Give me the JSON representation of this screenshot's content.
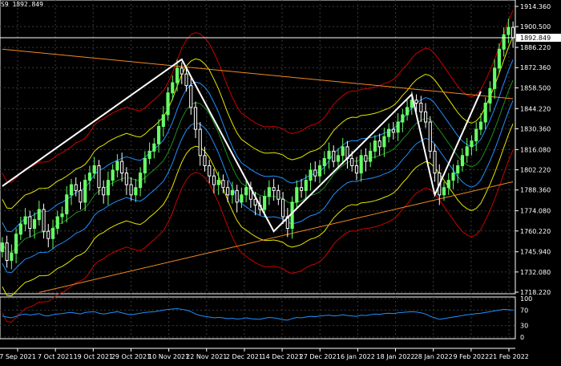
{
  "header": {
    "symbol_price": "S9 1892.849"
  },
  "current_price_label": "1892.849",
  "colors": {
    "background": "#000000",
    "grid": "#3a3a3a",
    "bull_candle": "#66ff66",
    "bear_candle": "#ffffff",
    "zigzag": "#ffffff",
    "trendline": "#f08a24",
    "envelope_outer": "#cc0000",
    "envelope_inner": "#e6e600",
    "bollinger": "#1e90ff",
    "ma_green": "#1c8f1c",
    "oscillator": "#1e90ff"
  },
  "chart_data": [
    {
      "type": "candlestick",
      "title": "",
      "price_axis_ticks": [
        "1914.360",
        "1900.500",
        "1886.220",
        "1872.360",
        "1858.500",
        "1844.220",
        "1830.360",
        "1816.080",
        "1802.220",
        "1788.360",
        "1774.080",
        "1760.220",
        "1745.940",
        "1732.080",
        "1718.220"
      ],
      "ylim": [
        1718.22,
        1914.36
      ],
      "time_axis_ticks": [
        "7 Sep 2021",
        "7 Oct 2021",
        "19 Oct 2021",
        "29 Oct 2021",
        "10 Nov 2021",
        "22 Nov 2021",
        "2 Dec 2021",
        "14 Dec 2021",
        "27 Dec 2021",
        "6 Jan 2022",
        "18 Jan 2022",
        "28 Jan 2022",
        "9 Feb 2022",
        "21 Feb 2022"
      ],
      "grid": true,
      "last_price": 1892.849,
      "close_series": [
        1752,
        1740,
        1745,
        1758,
        1765,
        1770,
        1762,
        1768,
        1775,
        1760,
        1755,
        1762,
        1770,
        1772,
        1785,
        1792,
        1788,
        1780,
        1795,
        1800,
        1805,
        1790,
        1785,
        1795,
        1802,
        1808,
        1800,
        1792,
        1785,
        1790,
        1800,
        1810,
        1815,
        1820,
        1832,
        1840,
        1855,
        1862,
        1872,
        1868,
        1860,
        1845,
        1830,
        1812,
        1805,
        1798,
        1792,
        1795,
        1790,
        1785,
        1788,
        1780,
        1785,
        1790,
        1782,
        1778,
        1775,
        1784,
        1790,
        1788,
        1782,
        1770,
        1762,
        1780,
        1790,
        1788,
        1795,
        1802,
        1798,
        1805,
        1810,
        1815,
        1808,
        1812,
        1818,
        1810,
        1805,
        1800,
        1812,
        1808,
        1815,
        1822,
        1818,
        1825,
        1830,
        1828,
        1835,
        1840,
        1845,
        1850,
        1848,
        1842,
        1835,
        1815,
        1800,
        1785,
        1790,
        1795,
        1800,
        1805,
        1812,
        1818,
        1822,
        1830,
        1835,
        1848,
        1858,
        1872,
        1885,
        1895,
        1900,
        1893
      ],
      "zigzag_points": [
        [
          0,
          1791
        ],
        [
          39,
          1878
        ],
        [
          59,
          1760
        ],
        [
          89,
          1854
        ],
        [
          94,
          1785
        ],
        [
          104,
          1856
        ]
      ],
      "trendlines": [
        {
          "name": "upper",
          "from": [
            0,
            1885
          ],
          "to": [
            111,
            1851
          ]
        },
        {
          "name": "lower",
          "from": [
            8,
            1718
          ],
          "to": [
            111,
            1794
          ]
        }
      ]
    },
    {
      "type": "line",
      "title": "",
      "ylim": [
        0,
        100
      ],
      "levels": [
        "100",
        "70",
        "30",
        "0"
      ],
      "values": [
        55,
        52,
        50,
        54,
        58,
        60,
        57,
        59,
        61,
        56,
        55,
        58,
        60,
        61,
        63,
        64,
        62,
        60,
        64,
        65,
        66,
        62,
        60,
        62,
        64,
        66,
        63,
        60,
        58,
        60,
        62,
        64,
        65,
        66,
        68,
        70,
        72,
        73,
        74,
        72,
        70,
        66,
        60,
        56,
        54,
        52,
        50,
        51,
        50,
        48,
        49,
        47,
        48,
        50,
        48,
        47,
        46,
        49,
        51,
        50,
        48,
        45,
        44,
        48,
        51,
        50,
        52,
        54,
        53,
        55,
        56,
        57,
        55,
        56,
        58,
        56,
        55,
        54,
        57,
        56,
        58,
        60,
        59,
        61,
        62,
        61,
        63,
        64,
        65,
        66,
        65,
        63,
        60,
        54,
        50,
        46,
        48,
        50,
        52,
        54,
        56,
        58,
        59,
        61,
        62,
        64,
        66,
        68,
        70,
        72,
        71,
        70
      ]
    }
  ]
}
